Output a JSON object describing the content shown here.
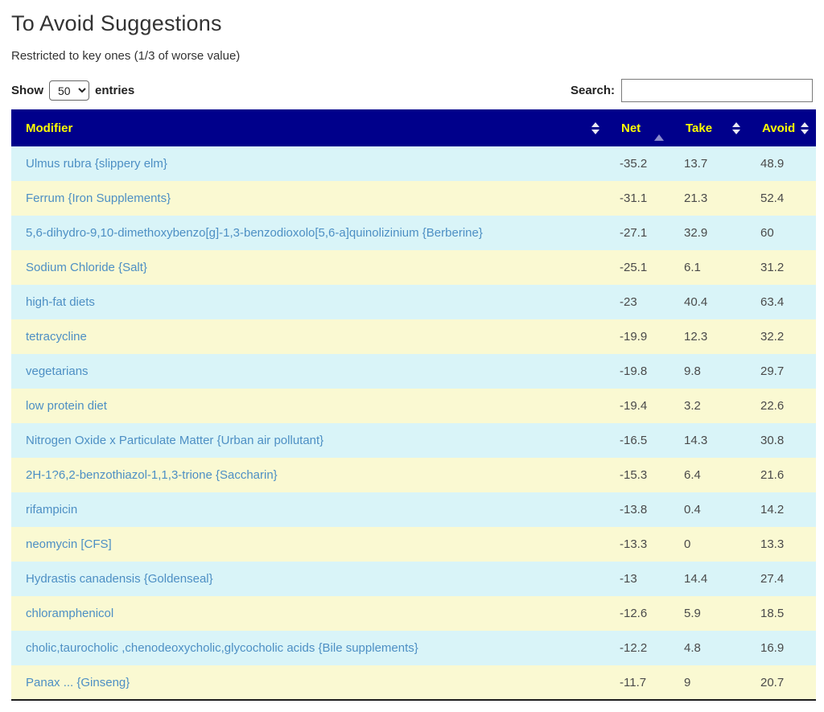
{
  "page": {
    "title": "To Avoid Suggestions",
    "subtitle": "Restricted to key ones (1/3 of worse value)"
  },
  "controls": {
    "show_label": "Show",
    "entries_label": "entries",
    "page_size_selected": "50",
    "search_label": "Search:",
    "search_value": "",
    "search_placeholder": ""
  },
  "table": {
    "columns": [
      {
        "label": "Modifier",
        "sort_state": "unsorted",
        "icon": "sort-both-icon"
      },
      {
        "label": "Net",
        "sort_state": "ascending",
        "icon": "sort-asc-icon"
      },
      {
        "label": "Take",
        "sort_state": "unsorted",
        "icon": "sort-both-icon"
      },
      {
        "label": "Avoid",
        "sort_state": "unsorted",
        "icon": "sort-both-icon"
      }
    ],
    "rows": [
      {
        "modifier": "Ulmus rubra {slippery elm}",
        "net": "-35.2",
        "take": "13.7",
        "avoid": "48.9"
      },
      {
        "modifier": "Ferrum {Iron Supplements}",
        "net": "-31.1",
        "take": "21.3",
        "avoid": "52.4"
      },
      {
        "modifier": "5,6-dihydro-9,10-dimethoxybenzo[g]-1,3-benzodioxolo[5,6-a]quinolizinium {Berberine}",
        "net": "-27.1",
        "take": "32.9",
        "avoid": "60"
      },
      {
        "modifier": "Sodium Chloride {Salt}",
        "net": "-25.1",
        "take": "6.1",
        "avoid": "31.2"
      },
      {
        "modifier": "high-fat diets",
        "net": "-23",
        "take": "40.4",
        "avoid": "63.4"
      },
      {
        "modifier": "tetracycline",
        "net": "-19.9",
        "take": "12.3",
        "avoid": "32.2"
      },
      {
        "modifier": "vegetarians",
        "net": "-19.8",
        "take": "9.8",
        "avoid": "29.7"
      },
      {
        "modifier": "low protein diet",
        "net": "-19.4",
        "take": "3.2",
        "avoid": "22.6"
      },
      {
        "modifier": "Nitrogen Oxide x Particulate Matter {Urban air pollutant}",
        "net": "-16.5",
        "take": "14.3",
        "avoid": "30.8"
      },
      {
        "modifier": "2H-1?6,2-benzothiazol-1,1,3-trione {Saccharin}",
        "net": "-15.3",
        "take": "6.4",
        "avoid": "21.6"
      },
      {
        "modifier": "rifampicin",
        "net": "-13.8",
        "take": "0.4",
        "avoid": "14.2"
      },
      {
        "modifier": "neomycin [CFS]",
        "net": "-13.3",
        "take": "0",
        "avoid": "13.3"
      },
      {
        "modifier": "Hydrastis canadensis {Goldenseal}",
        "net": "-13",
        "take": "14.4",
        "avoid": "27.4"
      },
      {
        "modifier": "chloramphenicol",
        "net": "-12.6",
        "take": "5.9",
        "avoid": "18.5"
      },
      {
        "modifier": "cholic,taurocholic ,chenodeoxycholic,glycocholic acids {Bile supplements}",
        "net": "-12.2",
        "take": "4.8",
        "avoid": "16.9"
      },
      {
        "modifier": "Panax ... {Ginseng}",
        "net": "-11.7",
        "take": "9",
        "avoid": "20.7"
      }
    ]
  },
  "colors": {
    "header_bg": "#00008B",
    "header_text": "#FFFF00",
    "row_odd_bg": "#D9F4F8",
    "row_even_bg": "#FAF9D2",
    "link_text": "#4D8FC4",
    "value_text": "#4A4A4A",
    "sort_icon_inactive": "#E9E9F2",
    "sort_icon_active": "#8A8ACC"
  }
}
